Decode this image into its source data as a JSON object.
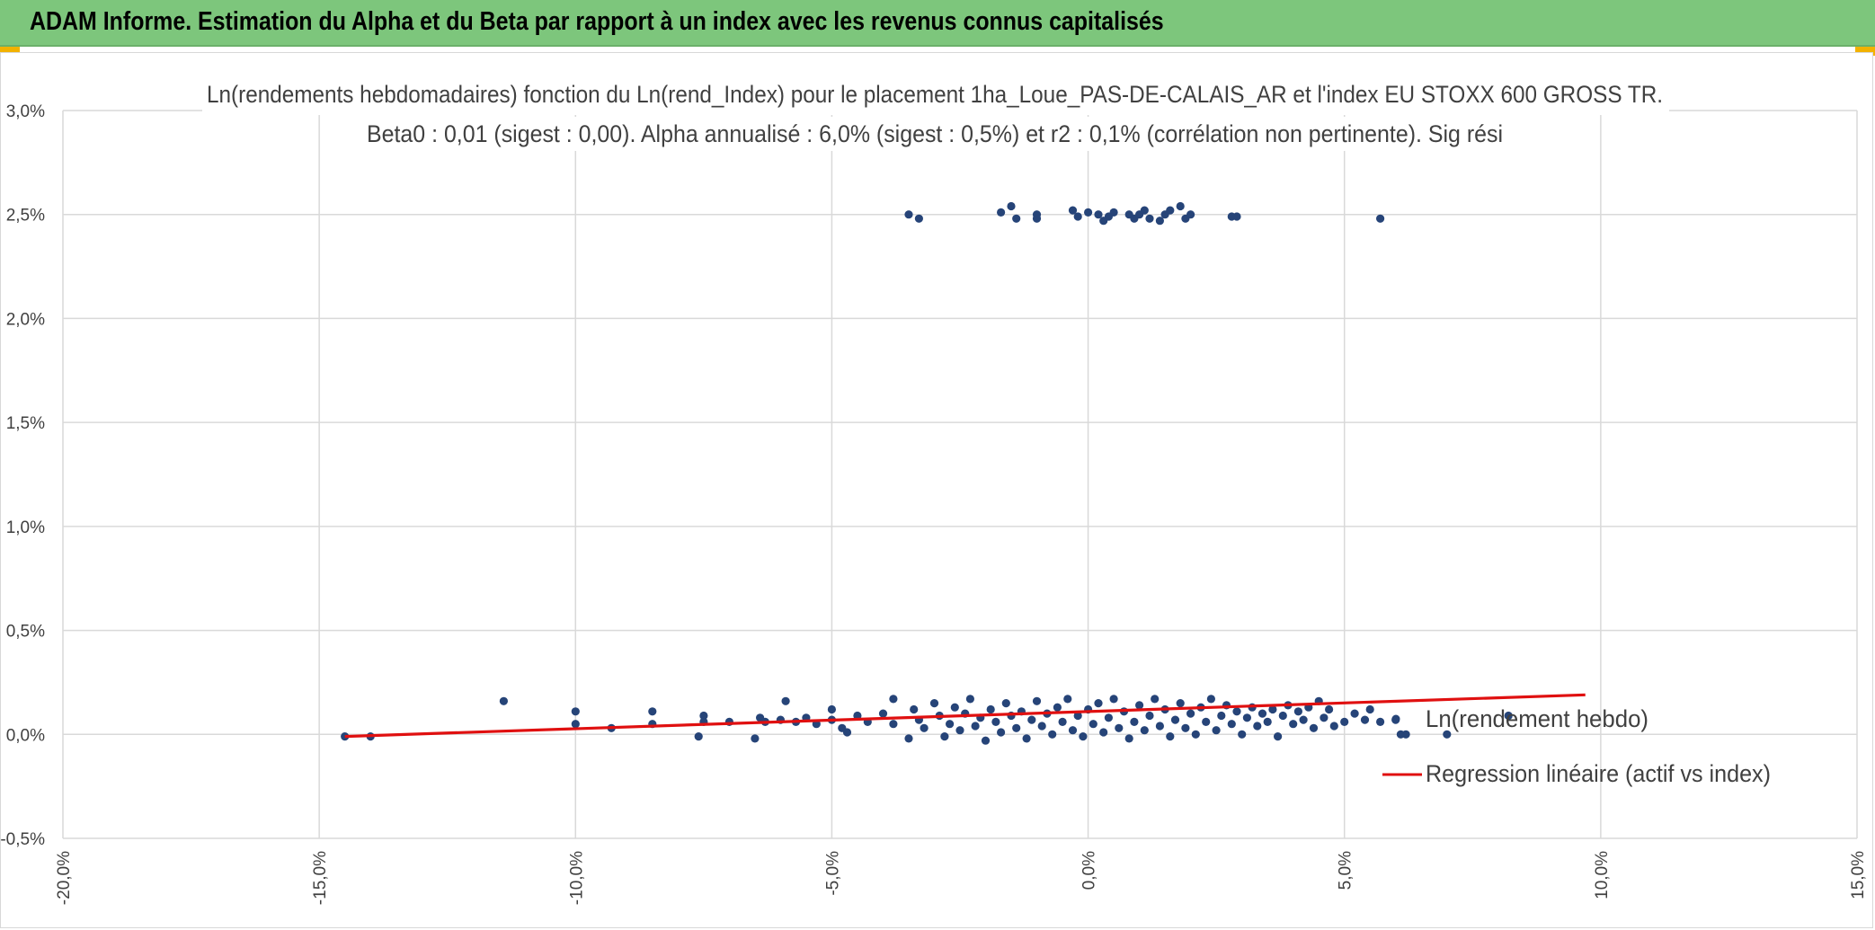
{
  "header": {
    "title": "ADAM Informe. Estimation du Alpha et du Beta par rapport à un index avec les revenus connus capitalisés"
  },
  "colors": {
    "header_bg": "#7dc67c",
    "accent_corner": "#f2b200",
    "points": "#264478",
    "regression": "#e01010",
    "grid": "#d9d9d9",
    "text": "#404040"
  },
  "chart_data": {
    "type": "scatter",
    "title": "Ln(rendements hebdomadaires) fonction du Ln(rend_Index) pour le placement 1ha_Loue_PAS-DE-CALAIS_AR et l'index EU STOXX 600 GROSS TR.",
    "subtitle": "Beta0 : 0,01 (sigest : 0,00). Alpha annualisé : 6,0% (sigest : 0,5%) et r2 : 0,1% (corrélation non pertinente). Sig rési",
    "xlabel": "",
    "ylabel": "",
    "xlim": [
      -0.2,
      0.15
    ],
    "ylim": [
      -0.005,
      0.03
    ],
    "x_ticks": [
      -0.2,
      -0.15,
      -0.1,
      -0.05,
      0.0,
      0.05,
      0.1,
      0.15
    ],
    "y_ticks": [
      -0.005,
      0.0,
      0.005,
      0.01,
      0.015,
      0.02,
      0.025,
      0.03
    ],
    "x_tick_labels": [
      "-20,0%",
      "-15,0%",
      "-10,0%",
      "-5,0%",
      "0,0%",
      "5,0%",
      "10,0%",
      "15,0%"
    ],
    "y_tick_labels": [
      "-0,5%",
      "0,0%",
      "0,5%",
      "1,0%",
      "1,5%",
      "2,0%",
      "2,5%",
      "3,0%"
    ],
    "grid": true,
    "legend_position": "right",
    "series": [
      {
        "name": "Ln(rendement hebdo)",
        "kind": "scatter",
        "points": [
          [
            -0.145,
            -0.0001
          ],
          [
            -0.14,
            -0.0001
          ],
          [
            -0.114,
            0.0016
          ],
          [
            -0.1,
            0.0011
          ],
          [
            -0.1,
            0.0005
          ],
          [
            -0.093,
            0.0003
          ],
          [
            -0.085,
            0.0011
          ],
          [
            -0.085,
            0.0005
          ],
          [
            -0.076,
            -0.0001
          ],
          [
            -0.075,
            0.0009
          ],
          [
            -0.075,
            0.0006
          ],
          [
            -0.07,
            0.0006
          ],
          [
            -0.065,
            -0.0002
          ],
          [
            -0.064,
            0.0008
          ],
          [
            -0.063,
            0.0006
          ],
          [
            -0.06,
            0.0007
          ],
          [
            -0.059,
            0.0016
          ],
          [
            -0.057,
            0.0006
          ],
          [
            -0.055,
            0.0008
          ],
          [
            -0.053,
            0.0005
          ],
          [
            -0.05,
            0.0007
          ],
          [
            -0.05,
            0.0012
          ],
          [
            -0.048,
            0.0003
          ],
          [
            -0.047,
            0.0001
          ],
          [
            -0.045,
            0.0009
          ],
          [
            -0.043,
            0.0006
          ],
          [
            -0.04,
            0.001
          ],
          [
            -0.038,
            0.0005
          ],
          [
            -0.038,
            0.0017
          ],
          [
            -0.035,
            -0.0002
          ],
          [
            -0.034,
            0.0012
          ],
          [
            -0.033,
            0.0007
          ],
          [
            -0.032,
            0.0003
          ],
          [
            -0.03,
            0.0015
          ],
          [
            -0.029,
            0.0009
          ],
          [
            -0.028,
            -0.0001
          ],
          [
            -0.027,
            0.0005
          ],
          [
            -0.026,
            0.0013
          ],
          [
            -0.025,
            0.0002
          ],
          [
            -0.024,
            0.001
          ],
          [
            -0.023,
            0.0017
          ],
          [
            -0.022,
            0.0004
          ],
          [
            -0.021,
            0.0008
          ],
          [
            -0.02,
            -0.0003
          ],
          [
            -0.019,
            0.0012
          ],
          [
            -0.018,
            0.0006
          ],
          [
            -0.017,
            0.0001
          ],
          [
            -0.016,
            0.0015
          ],
          [
            -0.015,
            0.0009
          ],
          [
            -0.014,
            0.0003
          ],
          [
            -0.013,
            0.0011
          ],
          [
            -0.012,
            -0.0002
          ],
          [
            -0.011,
            0.0007
          ],
          [
            -0.01,
            0.0016
          ],
          [
            -0.009,
            0.0004
          ],
          [
            -0.008,
            0.001
          ],
          [
            -0.007,
            0.0
          ],
          [
            -0.006,
            0.0013
          ],
          [
            -0.005,
            0.0006
          ],
          [
            -0.004,
            0.0017
          ],
          [
            -0.003,
            0.0002
          ],
          [
            -0.002,
            0.0009
          ],
          [
            -0.001,
            -0.0001
          ],
          [
            0.0,
            0.0012
          ],
          [
            0.001,
            0.0005
          ],
          [
            0.002,
            0.0015
          ],
          [
            0.003,
            0.0001
          ],
          [
            0.004,
            0.0008
          ],
          [
            0.005,
            0.0017
          ],
          [
            0.006,
            0.0003
          ],
          [
            0.007,
            0.0011
          ],
          [
            0.008,
            -0.0002
          ],
          [
            0.009,
            0.0006
          ],
          [
            0.01,
            0.0014
          ],
          [
            0.011,
            0.0002
          ],
          [
            0.012,
            0.0009
          ],
          [
            0.013,
            0.0017
          ],
          [
            0.014,
            0.0004
          ],
          [
            0.015,
            0.0012
          ],
          [
            0.016,
            -0.0001
          ],
          [
            0.017,
            0.0007
          ],
          [
            0.018,
            0.0015
          ],
          [
            0.019,
            0.0003
          ],
          [
            0.02,
            0.001
          ],
          [
            0.021,
            0.0
          ],
          [
            0.022,
            0.0013
          ],
          [
            0.023,
            0.0006
          ],
          [
            0.024,
            0.0017
          ],
          [
            0.025,
            0.0002
          ],
          [
            0.026,
            0.0009
          ],
          [
            0.027,
            0.0014
          ],
          [
            0.028,
            0.0005
          ],
          [
            0.029,
            0.0011
          ],
          [
            0.03,
            0.0
          ],
          [
            0.031,
            0.0008
          ],
          [
            0.032,
            0.0013
          ],
          [
            0.033,
            0.0004
          ],
          [
            0.034,
            0.001
          ],
          [
            0.035,
            0.0006
          ],
          [
            0.036,
            0.0012
          ],
          [
            0.037,
            -0.0001
          ],
          [
            0.038,
            0.0009
          ],
          [
            0.039,
            0.0014
          ],
          [
            0.04,
            0.0005
          ],
          [
            0.041,
            0.0011
          ],
          [
            0.042,
            0.0007
          ],
          [
            0.043,
            0.0013
          ],
          [
            0.044,
            0.0003
          ],
          [
            0.045,
            0.0016
          ],
          [
            0.046,
            0.0008
          ],
          [
            0.047,
            0.0012
          ],
          [
            0.048,
            0.0004
          ],
          [
            0.05,
            0.0006
          ],
          [
            0.052,
            0.001
          ],
          [
            0.054,
            0.0007
          ],
          [
            0.055,
            0.0012
          ],
          [
            0.057,
            0.0006
          ],
          [
            0.06,
            0.0007
          ],
          [
            0.061,
            0.0
          ],
          [
            0.062,
            0.0
          ],
          [
            0.07,
            0.0
          ],
          [
            0.082,
            0.0009
          ],
          [
            -0.035,
            0.025
          ],
          [
            -0.033,
            0.0248
          ],
          [
            -0.017,
            0.0251
          ],
          [
            -0.015,
            0.0254
          ],
          [
            -0.014,
            0.0248
          ],
          [
            -0.01,
            0.025
          ],
          [
            -0.01,
            0.0248
          ],
          [
            -0.003,
            0.0252
          ],
          [
            -0.002,
            0.0249
          ],
          [
            0.0,
            0.0251
          ],
          [
            0.002,
            0.025
          ],
          [
            0.003,
            0.0247
          ],
          [
            0.004,
            0.0249
          ],
          [
            0.005,
            0.0251
          ],
          [
            0.008,
            0.025
          ],
          [
            0.009,
            0.0248
          ],
          [
            0.01,
            0.025
          ],
          [
            0.011,
            0.0252
          ],
          [
            0.012,
            0.0248
          ],
          [
            0.014,
            0.0247
          ],
          [
            0.015,
            0.025
          ],
          [
            0.016,
            0.0252
          ],
          [
            0.018,
            0.0254
          ],
          [
            0.019,
            0.0248
          ],
          [
            0.02,
            0.025
          ],
          [
            0.028,
            0.0249
          ],
          [
            0.029,
            0.0249
          ],
          [
            0.057,
            0.0248
          ]
        ]
      },
      {
        "name": "Regression linéaire (actif vs index)",
        "kind": "line",
        "points": [
          [
            -0.145,
            -0.0001
          ],
          [
            0.097,
            0.0019
          ]
        ]
      }
    ]
  }
}
